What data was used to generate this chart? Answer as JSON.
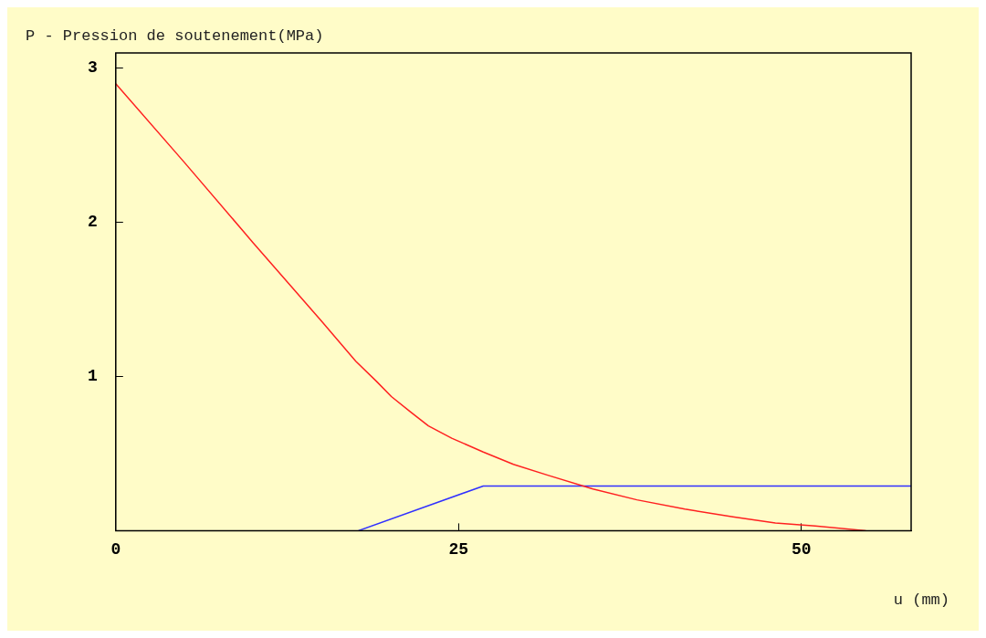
{
  "chart_data": {
    "type": "line",
    "ylabel": "P - Pression de soutenement(MPa)",
    "xlabel": "u (mm)",
    "xlim": [
      0,
      58
    ],
    "xticks": [
      0,
      25,
      50
    ],
    "ylim": [
      0,
      3.1
    ],
    "yticks": [
      1,
      2,
      3
    ],
    "grid": false,
    "legend": false,
    "marker": "none",
    "series": [
      {
        "color": "#ff2020",
        "x": [
          0,
          5,
          10,
          15,
          17.5,
          19,
          20.1,
          21.5,
          22.8,
          24.5,
          26.8,
          29,
          31.5,
          34.8,
          38,
          41.5,
          45,
          48.1,
          51,
          54.7
        ],
        "values": [
          2.9,
          2.39,
          1.87,
          1.36,
          1.1,
          0.97,
          0.87,
          0.77,
          0.68,
          0.6,
          0.51,
          0.43,
          0.36,
          0.27,
          0.2,
          0.14,
          0.09,
          0.05,
          0.03,
          0
        ]
      },
      {
        "color": "#3030ff",
        "x": [
          17.7,
          26.8,
          58
        ],
        "values": [
          0,
          0.29,
          0.29
        ]
      }
    ]
  }
}
